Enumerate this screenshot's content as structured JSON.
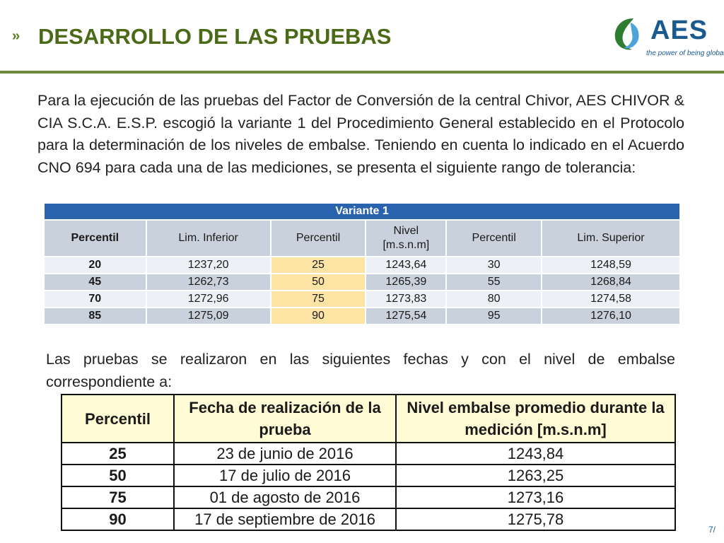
{
  "header": {
    "chevron": "››",
    "title": "DESARROLLO DE LAS PRUEBAS",
    "accent_color": "#4a6a17"
  },
  "logo": {
    "text": "AES",
    "tagline": "the power of being global"
  },
  "intro_paragraph": "Para la ejecución de las pruebas del Factor de Conversión de la central Chivor, AES CHIVOR & CIA S.C.A. E.S.P. escogió la variante 1 del Procedimiento General establecido en el Protocolo para la determinación de los niveles de embalse. Teniendo en cuenta lo indicado en el Acuerdo CNO 694 para cada una de las mediciones, se presenta el siguiente rango de tolerancia:",
  "tolerance_table": {
    "caption": "Variante 1",
    "headers": [
      "Percentil",
      "Lim. Inferior",
      "Percentil",
      "Nivel [m.s.n.m]",
      "Percentil",
      "Lim. Superior"
    ],
    "rows": [
      [
        "20",
        "1237,20",
        "25",
        "1243,64",
        "30",
        "1248,59"
      ],
      [
        "45",
        "1262,73",
        "50",
        "1265,39",
        "55",
        "1268,84"
      ],
      [
        "70",
        "1272,96",
        "75",
        "1273,83",
        "80",
        "1274,58"
      ],
      [
        "85",
        "1275,09",
        "90",
        "1275,54",
        "95",
        "1276,10"
      ]
    ]
  },
  "second_paragraph": "Las pruebas se realizaron en las siguientes fechas y con el nivel de embalse correspondiente a:",
  "tests_table": {
    "headers": [
      "Percentil",
      "Fecha de realización de la prueba",
      "Nivel embalse promedio durante la medición [m.s.n.m]"
    ],
    "rows": [
      [
        "25",
        "23 de junio de 2016",
        "1243,84"
      ],
      [
        "50",
        "17 de julio de 2016",
        "1263,25"
      ],
      [
        "75",
        "01 de agosto de 2016",
        "1273,16"
      ],
      [
        "90",
        "17 de septiembre de 2016",
        "1275,78"
      ]
    ]
  },
  "page_number": "7/"
}
